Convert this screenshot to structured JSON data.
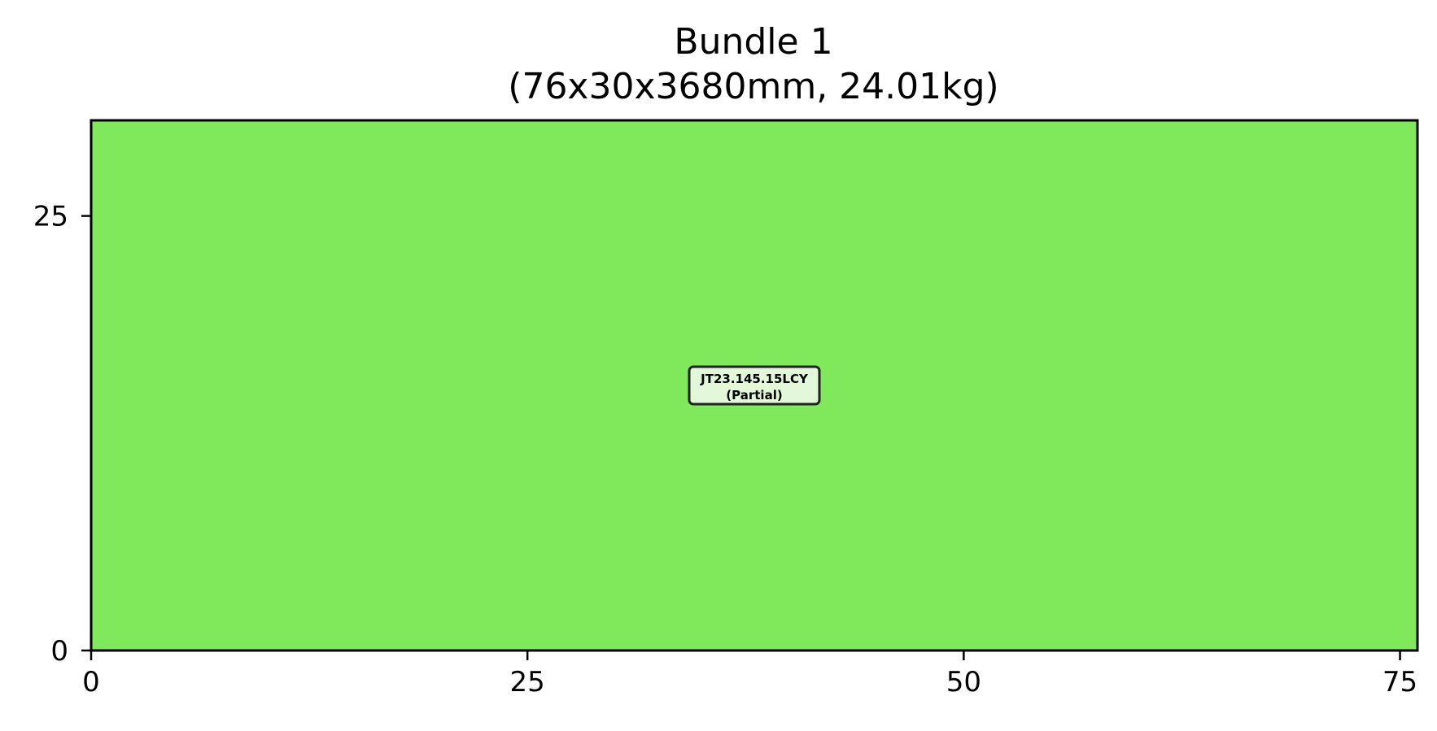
{
  "chart_data": {
    "type": "bar",
    "title": "Bundle 1",
    "subtitle": "(76x30x3680mm, 24.01kg)",
    "xlabel": "",
    "ylabel": "",
    "xlim": [
      0,
      76
    ],
    "ylim": [
      0,
      30.5
    ],
    "xticks": [
      0,
      25,
      50,
      75
    ],
    "yticks": [
      0,
      25
    ],
    "grid": false,
    "legend": "none",
    "items": [
      {
        "name": "JT23.145.15LCY",
        "status": "(Partial)",
        "x": 0,
        "y": 0,
        "width": 76,
        "height": 30.5,
        "color": "#7FE95B",
        "label_color": "#E2F8D9"
      }
    ]
  }
}
